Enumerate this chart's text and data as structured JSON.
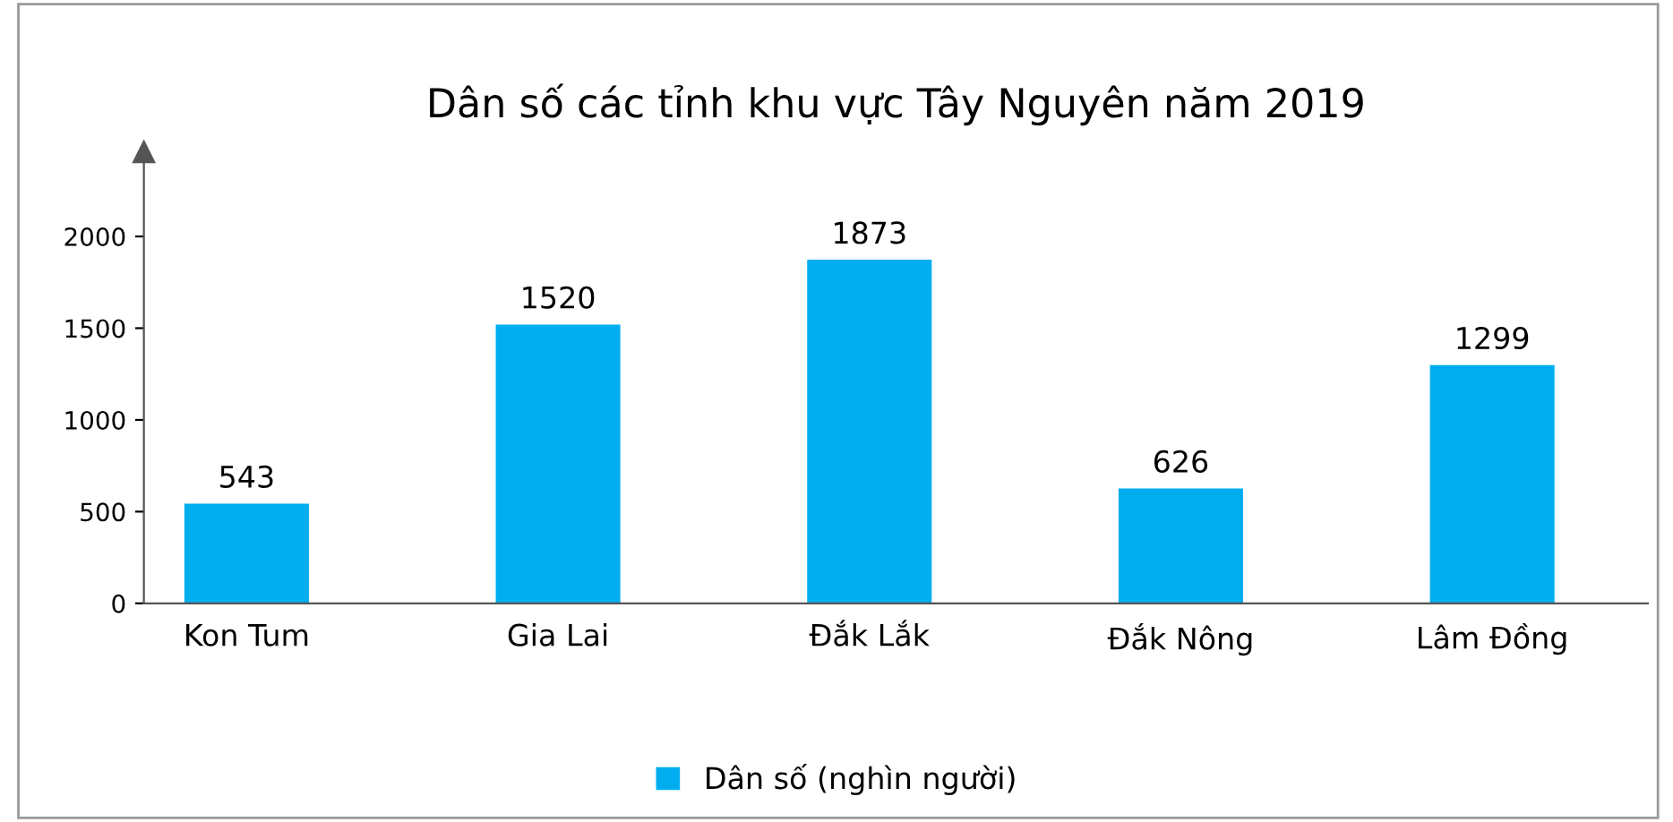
{
  "chart_data": {
    "type": "bar",
    "title": "Dân số các tỉnh khu vực Tây Nguyên năm 2019",
    "categories": [
      "Kon Tum",
      "Gia Lai",
      "Đắk Lắk",
      "Đắk Nông",
      "Lâm Đồng"
    ],
    "series": [
      {
        "name": "Dân số (nghìn người)",
        "color": "#00aeef",
        "values": [
          543,
          1520,
          1873,
          626,
          1299
        ]
      }
    ],
    "ylim": [
      0,
      2460
    ],
    "yticks": [
      0,
      500,
      1000,
      1500,
      2000
    ],
    "grid": false,
    "legend": "bottom",
    "data_labels": true
  }
}
